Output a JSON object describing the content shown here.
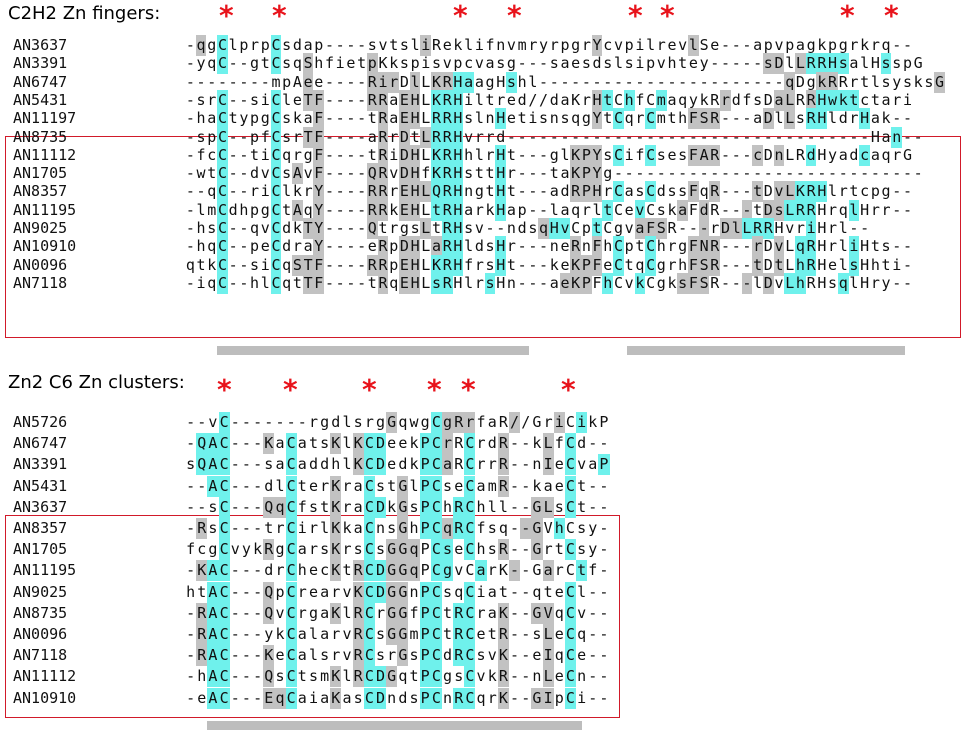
{
  "c2h2": {
    "title": "C2H2 Zn fingers:",
    "stars": [
      "*",
      "*",
      "*",
      "*",
      "*",
      "*",
      "*",
      "*"
    ],
    "rows": [
      {
        "label": "AN3637",
        "seq": "-qgClprpCsdap----svtsliReklifnvmryrpgrYcvpilrevlSe---apvpagkpgrkrq--",
        "hl": ".g.c....c.............g...............g........g.....................g..."
      },
      {
        "label": "AN3391",
        "seq": "-yqC--gtCsqShfietpKkspisvpcvasg---saesdslsipvhtey-----sDlLRRHsalHsspG",
        "hl": "...c....c..g.....g....................................gg.gcccc...c...g"
      },
      {
        "label": "AN6747",
        "seq": "--------mpAee----RirDlLKRHaagHshl-----------------------qDgkRRrtlsysksG",
        "hl": "...........g.....ggg.g.ggcc...c.........................g..gg.........g"
      },
      {
        "label": "AN5431",
        "seq": "-srC--siCleTF----RRaEHLKRHiltred//daKrHtChfCmaqykRrdfsDaLRRHwktctari",
        "hl": "...c....c..gg....gg.gg.ccc............gc.c..c.....g....gg.gcccc........"
      },
      {
        "label": "AN11197",
        "seq": "-haCtypgCskaF----tRaEHLRRHslnHetisnsqgYtCqrCmthFSR---aDlLsRHldrHak--",
        "hl": "...c....c...g.....g.gg.ccc...c........g.c..c...ggg....g.g.cc...c......."
      },
      {
        "label": "AN8735",
        "seq": "-spC--pfCsrTF----aRrDtLRRHvrrd----------------------------------Han--",
        "hl": "...c....c..gg.....g.g.gccc........................................c...."
      },
      {
        "label": "AN11112",
        "seq": "-fcC--tiCqrgF----tRiDHLKRHhlrHt---glKPYsCifCsesFAR---cDnLRdHyadcaqrG",
        "hl": "...c....c...g.....g.gg.ccc...c......ggg.c..c...ggg...g.g..c....c....g"
      },
      {
        "label": "AN1705",
        "seq": "-wtC--dvCsAvF----QRvDHfKRHsttHr---taKPYg-----------------------------",
        "hl": "...c....c.g.g....gg.gg.ccc...c......ggg.............................."
      },
      {
        "label": "AN8357",
        "seq": "--qC--riClkrY----RRrEHLQRHngtHt---adRPHrCasCdssFqR---tDvLKRHlrtcpg--",
        "hl": "...c....c...g....gg.gggccc...c......ggg.c..c...g.g...g.ggccc........."
      },
      {
        "label": "AN11195",
        "seq": "-lmCdhpgCtAqY----RRkEHLtRHarkHap--laqrltCevCskaFdR---tDsLRRHrqlHrr--",
        "hl": "...c....c.g.g....gg.gg.ccc...c.........c..c...g.g...g.ggccc...c......."
      },
      {
        "label": "AN9025",
        "seq": "-hsC--qvCdkTY----QtrgsLtRHsv--ndsqHvCptCgvaFSR---rDlLRRHvriHrl--",
        "hl": "...c....c..gg....g....g.cc.......gcc..c...ggg...g.ggccc...c...."
      },
      {
        "label": "AN10910",
        "seq": "-hqC--peCdraY----eRpDHLaRHldsHr---neRnFhCptChrgFNR---rDvLqRHrliHts--",
        "hl": "...c....c...g.....g.gg.gcc...c......g.g.c..c...ggg...g.g.cc...c......."
      },
      {
        "label": "AN0096",
        "seq": "qtkC--siCqSTF----RRpEHLKRHfrsHt---keKPFeCtqCgrhFSR---tDtLhRHelsHhti-",
        "hl": "...c....c.ggg....gg.gg.ccc...c......ggg.c..c...ggg...g.g.cc...c......."
      },
      {
        "label": "AN7118",
        "seq": "-iqC--hlCqtTF----tRqEHLsRHlrsHn---aeKPFhCvkCgksFSR---lDvLhRHsqlHry--",
        "hl": "...c....c..gg.....g.gg.cc...c......ggg.c..c...ggg...g.g.cc...c......."
      }
    ]
  },
  "zn2c6": {
    "title": "Zn2 C6 Zn clusters:",
    "stars": [
      "*",
      "*",
      "*",
      "*",
      "*",
      "*"
    ],
    "rows": [
      {
        "label": "AN5726",
        "seq": "--vC-------rgdlsrgGqwgCgRrfaR//GriCikP",
        "hl": "...c..............g...cggg...g...g.c..c"
      },
      {
        "label": "AN6747",
        "seq": "-QAC---KaCatsKlKCDeekPCrRCrdR--kLfCd--",
        "hl": ".ccc...g.c...g.gcc...ccg.c..g...g.c..."
      },
      {
        "label": "AN3391",
        "seq": "sQAC---saCaddhlKCDedkPCaRCrrR--nIeCvaP",
        "hl": ".ccc.....c.....gcc...ccg.c..g...g.c..c"
      },
      {
        "label": "AN5431",
        "seq": "--AC---dlCterKraCstGlPCseCamR--kaeCt--",
        "hl": "..cc.....c...g..c..g.cc..c..g.....c..."
      },
      {
        "label": "AN3637",
        "seq": "--sC---QqCfstKraCDkGsPChRChll--GLsCt--",
        "hl": "...c...ggc...g..cc.g.cc.cc.....gg.c..."
      },
      {
        "label": "AN8357",
        "seq": "-RsC---trCirlKkaCnsGhPCqRCfsq--GVhCsy-",
        "hl": ".g.c.....c...g..c..g.ccgcc....gg.c...."
      },
      {
        "label": "AN1705",
        "seq": "fcgCvykRgCarsKrsCsGGqPCseChsR--GrtCsy-",
        "hl": "...c...g.c...g..c.ggg.cc.c..g..g..c...."
      },
      {
        "label": "AN11195",
        "seq": "-KAC---drChecKtRCDGGqPCgvCarK--GarCtf-",
        "hl": ".gcc.....c...g.gccggg.cc..c..g..g..c...."
      },
      {
        "label": "AN9025",
        "seq": "htAC---QpCrearvKCDGGnPCsqCiat--qteCl--",
        "hl": "..cc...g.c.....gccgg.cc..c........c..."
      },
      {
        "label": "AN8735",
        "seq": "-RAC---QvCrgaKlRCrGGfPCtRCraK--GVqCv--",
        "hl": ".gcc...g.c...g.gc.gg.cc.cc..g..gg.c..."
      },
      {
        "label": "AN0096",
        "seq": "-RAC---ykCalarvRCsGGmPCtRCetR--sLeCq--",
        "hl": ".gcc.....c.....gc.gg.cc.cc..g...g.c..."
      },
      {
        "label": "AN7118",
        "seq": "-RAC---KeCalsrvRCsrGsPCdRCsvK--eIqCe--",
        "hl": ".gcc...g.c.....gc..g.cc.cc..g...g.c..."
      },
      {
        "label": "AN11112",
        "seq": "-hAC---QsCtsmKlRCDGqtPCgsCvkR--nLeCn--",
        "hl": "..cc...g.c...g.gccg..cc..c..g...g.c..."
      },
      {
        "label": "AN10910",
        "seq": "-eAC---EqCaiaKasCDndsPCnRCqrK--GIpCi--",
        "hl": "..cc...ggc...g..cc...cc.cc..g..gg.c..."
      }
    ]
  }
}
